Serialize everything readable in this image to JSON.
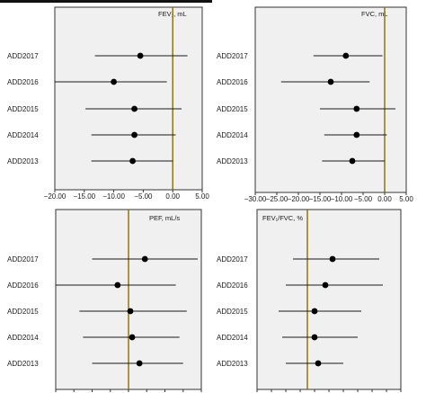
{
  "chart_data": [
    {
      "type": "scatter",
      "title": "FEV₁, mL",
      "categories": [
        "ADD2017",
        "ADD2016",
        "ADD2015",
        "ADD2014",
        "ADD2013"
      ],
      "estimates": [
        -5.5,
        -10.0,
        -6.5,
        -6.5,
        -6.8
      ],
      "ci_low": [
        -13.2,
        -20.0,
        -14.8,
        -13.8,
        -13.8
      ],
      "ci_high": [
        2.5,
        -1.0,
        1.5,
        0.5,
        0.0
      ],
      "reference_line": 0,
      "xlim": [
        -20,
        5
      ],
      "xticks": [
        -20,
        -15,
        -10,
        -5,
        0,
        5
      ],
      "xtick_labels": [
        "−20.00",
        "−15.00",
        "−10.00",
        "−5.00",
        "0.00",
        "5.00"
      ]
    },
    {
      "type": "scatter",
      "title": "FVC, mL",
      "categories": [
        "ADD2017",
        "ADD2016",
        "ADD2015",
        "ADD2014",
        "ADD2013"
      ],
      "estimates": [
        -9.0,
        -12.5,
        -6.5,
        -6.5,
        -7.5
      ],
      "ci_low": [
        -16.5,
        -24.0,
        -15.0,
        -14.0,
        -14.5
      ],
      "ci_high": [
        -0.5,
        -3.5,
        2.5,
        0.5,
        0.0
      ],
      "reference_line": 0,
      "xlim": [
        -30,
        5
      ],
      "xticks": [
        -30,
        -25,
        -20,
        -15,
        -10,
        -5,
        0,
        5
      ],
      "xtick_labels": [
        "−30.00",
        "−25.00",
        "−20.00",
        "−15.00",
        "−10.00",
        "−5.00",
        "0.00",
        "5.00"
      ]
    },
    {
      "type": "scatter",
      "title": "PEF, mL/s",
      "categories": [
        "ADD2017",
        "ADD2016",
        "ADD2015",
        "ADD2014",
        "ADD2013"
      ],
      "estimates": [
        0.9,
        -0.6,
        0.1,
        0.2,
        0.6
      ],
      "ci_low": [
        -2.0,
        -4.0,
        -2.7,
        -2.5,
        -2.0
      ],
      "ci_high": [
        3.8,
        2.6,
        3.2,
        2.8,
        3.0
      ],
      "reference_line": 0,
      "xlim": [
        -4,
        4
      ],
      "xticks": [
        -4,
        -3,
        -2,
        -1,
        0,
        1,
        2,
        3,
        4
      ]
    },
    {
      "type": "scatter",
      "title": "FEV₁/FVC, %",
      "categories": [
        "ADD2017",
        "ADD2016",
        "ADD2015",
        "ADD2014",
        "ADD2013"
      ],
      "estimates": [
        0.7,
        0.5,
        0.2,
        0.2,
        0.3
      ],
      "ci_low": [
        -0.4,
        -0.6,
        -0.8,
        -0.7,
        -0.6
      ],
      "ci_high": [
        2.0,
        2.1,
        1.5,
        1.4,
        1.0
      ],
      "reference_line": 0,
      "xlim": [
        -1.4,
        2.6
      ],
      "xticks": [
        -1.4,
        -1.0,
        -0.6,
        -0.2,
        0.2,
        0.6,
        1.0,
        1.4,
        1.8,
        2.2,
        2.6
      ]
    }
  ]
}
